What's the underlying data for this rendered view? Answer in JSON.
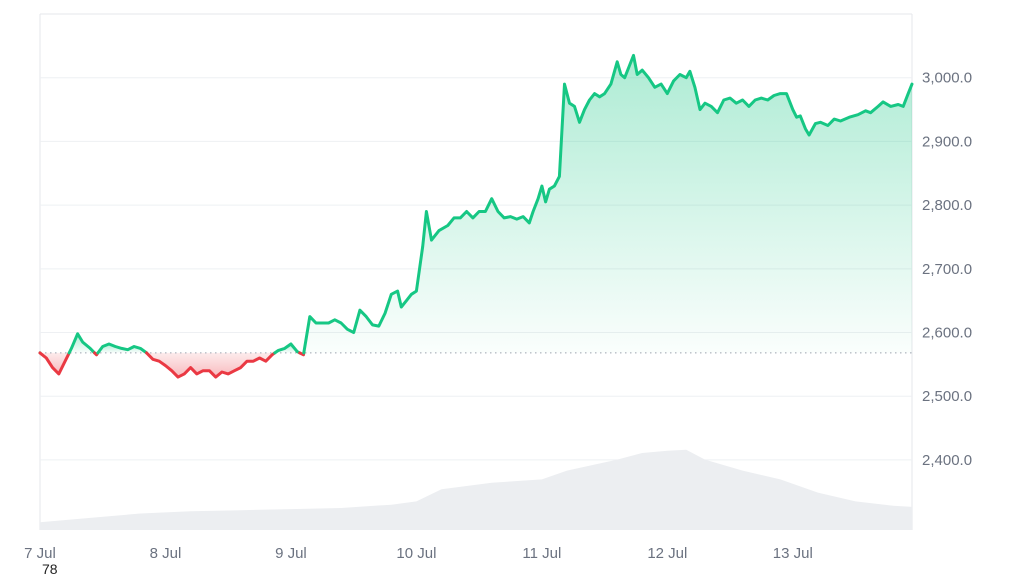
{
  "chart_data": {
    "type": "area",
    "y_ticks": [
      {
        "value": 3000,
        "label": "3,000.0"
      },
      {
        "value": 2900,
        "label": "2,900.0"
      },
      {
        "value": 2800,
        "label": "2,800.0"
      },
      {
        "value": 2700,
        "label": "2,700.0"
      },
      {
        "value": 2600,
        "label": "2,600.0"
      },
      {
        "value": 2500,
        "label": "2,500.0"
      },
      {
        "value": 2400,
        "label": "2,400.0"
      }
    ],
    "x_ticks": [
      {
        "x": 0,
        "label": "7 Jul"
      },
      {
        "x": 1,
        "label": "8 Jul"
      },
      {
        "x": 2,
        "label": "9 Jul"
      },
      {
        "x": 3,
        "label": "10 Jul"
      },
      {
        "x": 4,
        "label": "11 Jul"
      },
      {
        "x": 5,
        "label": "12 Jul"
      },
      {
        "x": 6,
        "label": "13 Jul"
      }
    ],
    "x_range": [
      0,
      6.95
    ],
    "y_range": [
      2290,
      3100
    ],
    "baseline": 2568,
    "grid": true,
    "colors": {
      "up": "#16c784",
      "down": "#ea3943",
      "volume": "#eceef1",
      "grid": "#eef0f3",
      "axis_text": "#6b7280"
    },
    "price_series": [
      [
        0.0,
        2568
      ],
      [
        0.05,
        2560
      ],
      [
        0.1,
        2545
      ],
      [
        0.15,
        2535
      ],
      [
        0.2,
        2555
      ],
      [
        0.25,
        2575
      ],
      [
        0.3,
        2598
      ],
      [
        0.34,
        2585
      ],
      [
        0.4,
        2575
      ],
      [
        0.45,
        2565
      ],
      [
        0.5,
        2578
      ],
      [
        0.55,
        2582
      ],
      [
        0.6,
        2578
      ],
      [
        0.65,
        2575
      ],
      [
        0.7,
        2573
      ],
      [
        0.75,
        2578
      ],
      [
        0.8,
        2575
      ],
      [
        0.85,
        2568
      ],
      [
        0.9,
        2558
      ],
      [
        0.95,
        2555
      ],
      [
        1.0,
        2548
      ],
      [
        1.05,
        2540
      ],
      [
        1.1,
        2530
      ],
      [
        1.15,
        2535
      ],
      [
        1.2,
        2545
      ],
      [
        1.25,
        2535
      ],
      [
        1.3,
        2540
      ],
      [
        1.35,
        2540
      ],
      [
        1.4,
        2530
      ],
      [
        1.45,
        2538
      ],
      [
        1.5,
        2535
      ],
      [
        1.55,
        2540
      ],
      [
        1.6,
        2545
      ],
      [
        1.65,
        2555
      ],
      [
        1.7,
        2555
      ],
      [
        1.75,
        2560
      ],
      [
        1.8,
        2555
      ],
      [
        1.85,
        2565
      ],
      [
        1.9,
        2572
      ],
      [
        1.95,
        2575
      ],
      [
        2.0,
        2582
      ],
      [
        2.05,
        2570
      ],
      [
        2.1,
        2565
      ],
      [
        2.15,
        2625
      ],
      [
        2.2,
        2615
      ],
      [
        2.3,
        2615
      ],
      [
        2.35,
        2620
      ],
      [
        2.4,
        2615
      ],
      [
        2.45,
        2605
      ],
      [
        2.5,
        2600
      ],
      [
        2.55,
        2635
      ],
      [
        2.6,
        2625
      ],
      [
        2.65,
        2612
      ],
      [
        2.7,
        2610
      ],
      [
        2.75,
        2630
      ],
      [
        2.8,
        2660
      ],
      [
        2.85,
        2665
      ],
      [
        2.88,
        2640
      ],
      [
        2.92,
        2650
      ],
      [
        2.96,
        2660
      ],
      [
        3.0,
        2665
      ],
      [
        3.05,
        2735
      ],
      [
        3.08,
        2790
      ],
      [
        3.12,
        2745
      ],
      [
        3.18,
        2760
      ],
      [
        3.25,
        2768
      ],
      [
        3.3,
        2780
      ],
      [
        3.35,
        2780
      ],
      [
        3.4,
        2790
      ],
      [
        3.45,
        2780
      ],
      [
        3.5,
        2790
      ],
      [
        3.55,
        2790
      ],
      [
        3.6,
        2810
      ],
      [
        3.65,
        2790
      ],
      [
        3.7,
        2780
      ],
      [
        3.75,
        2782
      ],
      [
        3.8,
        2778
      ],
      [
        3.85,
        2782
      ],
      [
        3.9,
        2772
      ],
      [
        3.93,
        2790
      ],
      [
        3.97,
        2810
      ],
      [
        4.0,
        2830
      ],
      [
        4.03,
        2805
      ],
      [
        4.06,
        2825
      ],
      [
        4.1,
        2830
      ],
      [
        4.14,
        2845
      ],
      [
        4.18,
        2990
      ],
      [
        4.22,
        2960
      ],
      [
        4.26,
        2955
      ],
      [
        4.3,
        2930
      ],
      [
        4.34,
        2950
      ],
      [
        4.38,
        2965
      ],
      [
        4.42,
        2975
      ],
      [
        4.46,
        2970
      ],
      [
        4.5,
        2975
      ],
      [
        4.55,
        2990
      ],
      [
        4.6,
        3025
      ],
      [
        4.63,
        3005
      ],
      [
        4.66,
        3000
      ],
      [
        4.7,
        3020
      ],
      [
        4.73,
        3035
      ],
      [
        4.76,
        3005
      ],
      [
        4.8,
        3012
      ],
      [
        4.85,
        3000
      ],
      [
        4.9,
        2985
      ],
      [
        4.95,
        2990
      ],
      [
        5.0,
        2975
      ],
      [
        5.05,
        2995
      ],
      [
        5.1,
        3005
      ],
      [
        5.15,
        3000
      ],
      [
        5.18,
        3010
      ],
      [
        5.22,
        2985
      ],
      [
        5.26,
        2950
      ],
      [
        5.3,
        2960
      ],
      [
        5.35,
        2955
      ],
      [
        5.4,
        2945
      ],
      [
        5.45,
        2965
      ],
      [
        5.5,
        2968
      ],
      [
        5.55,
        2960
      ],
      [
        5.6,
        2965
      ],
      [
        5.65,
        2955
      ],
      [
        5.7,
        2965
      ],
      [
        5.75,
        2968
      ],
      [
        5.8,
        2965
      ],
      [
        5.85,
        2972
      ],
      [
        5.9,
        2975
      ],
      [
        5.95,
        2975
      ],
      [
        6.0,
        2950
      ],
      [
        6.03,
        2938
      ],
      [
        6.06,
        2940
      ],
      [
        6.1,
        2920
      ],
      [
        6.13,
        2910
      ],
      [
        6.18,
        2928
      ],
      [
        6.22,
        2930
      ],
      [
        6.28,
        2925
      ],
      [
        6.33,
        2935
      ],
      [
        6.38,
        2932
      ],
      [
        6.45,
        2938
      ],
      [
        6.52,
        2942
      ],
      [
        6.58,
        2948
      ],
      [
        6.62,
        2945
      ],
      [
        6.68,
        2955
      ],
      [
        6.72,
        2962
      ],
      [
        6.78,
        2955
      ],
      [
        6.84,
        2958
      ],
      [
        6.88,
        2955
      ],
      [
        6.92,
        2975
      ],
      [
        6.95,
        2990
      ]
    ],
    "volume_series": [
      [
        0.0,
        0.35
      ],
      [
        0.4,
        0.55
      ],
      [
        0.8,
        0.75
      ],
      [
        1.2,
        0.85
      ],
      [
        1.6,
        0.9
      ],
      [
        2.0,
        0.95
      ],
      [
        2.4,
        1.0
      ],
      [
        2.8,
        1.15
      ],
      [
        3.0,
        1.3
      ],
      [
        3.2,
        1.85
      ],
      [
        3.6,
        2.15
      ],
      [
        4.0,
        2.3
      ],
      [
        4.2,
        2.7
      ],
      [
        4.6,
        3.2
      ],
      [
        4.8,
        3.5
      ],
      [
        5.0,
        3.6
      ],
      [
        5.15,
        3.65
      ],
      [
        5.3,
        3.2
      ],
      [
        5.6,
        2.7
      ],
      [
        5.9,
        2.3
      ],
      [
        6.2,
        1.7
      ],
      [
        6.5,
        1.3
      ],
      [
        6.8,
        1.1
      ],
      [
        6.95,
        1.05
      ]
    ],
    "volume_max": 5
  },
  "footer": {
    "corner_label": "78"
  }
}
